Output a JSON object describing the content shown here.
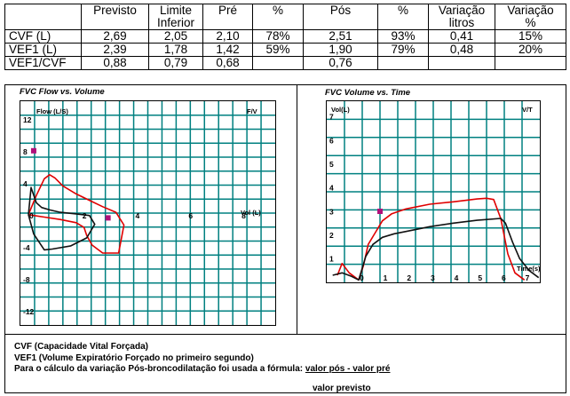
{
  "table": {
    "headers": [
      "",
      "Previsto",
      "Limite\nInferior",
      "Pré",
      "%",
      "Pós",
      "%",
      "Variação\nlitros",
      "Variação\n%"
    ],
    "rows": [
      [
        "CVF  (L)",
        "2,69",
        "2,05",
        "2,10",
        "78%",
        "2,51",
        "93%",
        "0,41",
        "15%"
      ],
      [
        "VEF1 (L)",
        "2,39",
        "1,78",
        "1,42",
        "59%",
        "1,90",
        "79%",
        "0,48",
        "20%"
      ],
      [
        "VEF1/CVF",
        "0,88",
        "0,79",
        "0,68",
        "",
        "0,76",
        "",
        "",
        ""
      ]
    ]
  },
  "chart_data": [
    {
      "type": "line",
      "title": "FVC Flow vs. Volume",
      "xlabel": "Vol (L)",
      "ylabel": "Flow (L/S)",
      "corner_label": "F/V",
      "xlim": [
        -0.3,
        9.3
      ],
      "ylim": [
        -13.8,
        14.2
      ],
      "x_ticks": [
        "0",
        "2",
        "4",
        "6",
        "8"
      ],
      "x_tick_values": [
        0,
        2,
        4,
        6,
        8
      ],
      "y_ticks": [
        "12",
        "8",
        "4",
        "-4",
        "-8",
        "-12"
      ],
      "y_tick_values": [
        12,
        8,
        4,
        -4,
        -8,
        -12
      ],
      "series": [
        {
          "color": "#e00000",
          "x": [
            0,
            0.3,
            0.6,
            0.8,
            1,
            1.3,
            1.8,
            2.3,
            2.8,
            3.3,
            3.6,
            3.4,
            2.8,
            2.4,
            2.2,
            2.1,
            1.8,
            1.2,
            0.6,
            0.2,
            0
          ],
          "y": [
            0,
            2.4,
            4.5,
            5.0,
            4.6,
            3.6,
            2.6,
            1.8,
            1.0,
            0.3,
            -1.3,
            -4.8,
            -4.8,
            -3.8,
            -2.6,
            -1.6,
            -1.0,
            -0.6,
            -0.3,
            -0.1,
            0
          ]
        },
        {
          "color": "#111111",
          "x": [
            0,
            0.1,
            0.3,
            0.5,
            0.8,
            1.2,
            1.8,
            2.3,
            2.5,
            2.2,
            1.6,
            0.9,
            0.6,
            0.2,
            0
          ],
          "y": [
            0,
            3.4,
            1.5,
            0.9,
            0.6,
            0.3,
            0.1,
            -0.1,
            -1.2,
            -2.9,
            -3.9,
            -4.3,
            -4.4,
            -2.4,
            0
          ]
        }
      ],
      "markers": [
        {
          "x": 0.2,
          "y": 8,
          "color": "#b0107a"
        },
        {
          "x": 3.0,
          "y": -0.4,
          "color": "#b0107a"
        }
      ]
    },
    {
      "type": "line",
      "title": "FVC Volume vs. Time",
      "xlabel": "Time(s)",
      "ylabel": "Vol(L)",
      "corner_label": "V/T",
      "xlim": [
        -1.35,
        7.65
      ],
      "ylim": [
        -0.1,
        7.55
      ],
      "x_ticks": [
        "0",
        "1",
        "2",
        "3",
        "4",
        "5",
        "6",
        "7"
      ],
      "x_tick_values": [
        0,
        1,
        2,
        3,
        4,
        5,
        6,
        7
      ],
      "y_ticks": [
        "1",
        "2",
        "3",
        "4",
        "5",
        "6",
        "7"
      ],
      "y_tick_values": [
        1,
        2,
        3,
        4,
        5,
        6,
        7
      ],
      "series": [
        {
          "color": "#e00000",
          "x": [
            -0.9,
            -0.7,
            -0.4,
            0,
            0.2,
            0.4,
            0.7,
            1.0,
            1.4,
            2,
            3,
            4,
            5,
            5.4,
            5.7,
            6,
            6.3,
            6.6,
            7
          ],
          "y": [
            0.2,
            0.7,
            0.3,
            0,
            0.6,
            1.5,
            2.0,
            2.5,
            2.8,
            3.0,
            3.2,
            3.3,
            3.42,
            3.45,
            3.4,
            2.6,
            1.1,
            0.3,
            0
          ]
        },
        {
          "color": "#111111",
          "x": [
            -1.1,
            -0.7,
            -0.3,
            0,
            0.3,
            0.6,
            1,
            1.5,
            2,
            3,
            4,
            5,
            6,
            6.2,
            6.5,
            6.8,
            7.2,
            7.6
          ],
          "y": [
            0.2,
            0.3,
            0.15,
            0,
            1.0,
            1.5,
            1.8,
            1.95,
            2.05,
            2.25,
            2.4,
            2.52,
            2.6,
            2.4,
            1.6,
            0.9,
            0.4,
            0.1
          ]
        }
      ],
      "markers": [
        {
          "x": 0.9,
          "y": 2.9,
          "color": "#b0107a"
        }
      ]
    }
  ],
  "notes": {
    "line1": "CVF (Capacidade Vital Forçada)",
    "line2": "VEF1 (Volume Expiratório Forçado no primeiro segundo)",
    "line3_prefix": "Para o cálculo da variação Pós-broncodilatação foi usada a fórmula: ",
    "numerator": "valor pós - valor pré",
    "denominator": "valor previsto"
  },
  "colors": {
    "grid": "#008080",
    "pre": "#111111",
    "post": "#e00000",
    "marker": "#b0107a"
  }
}
